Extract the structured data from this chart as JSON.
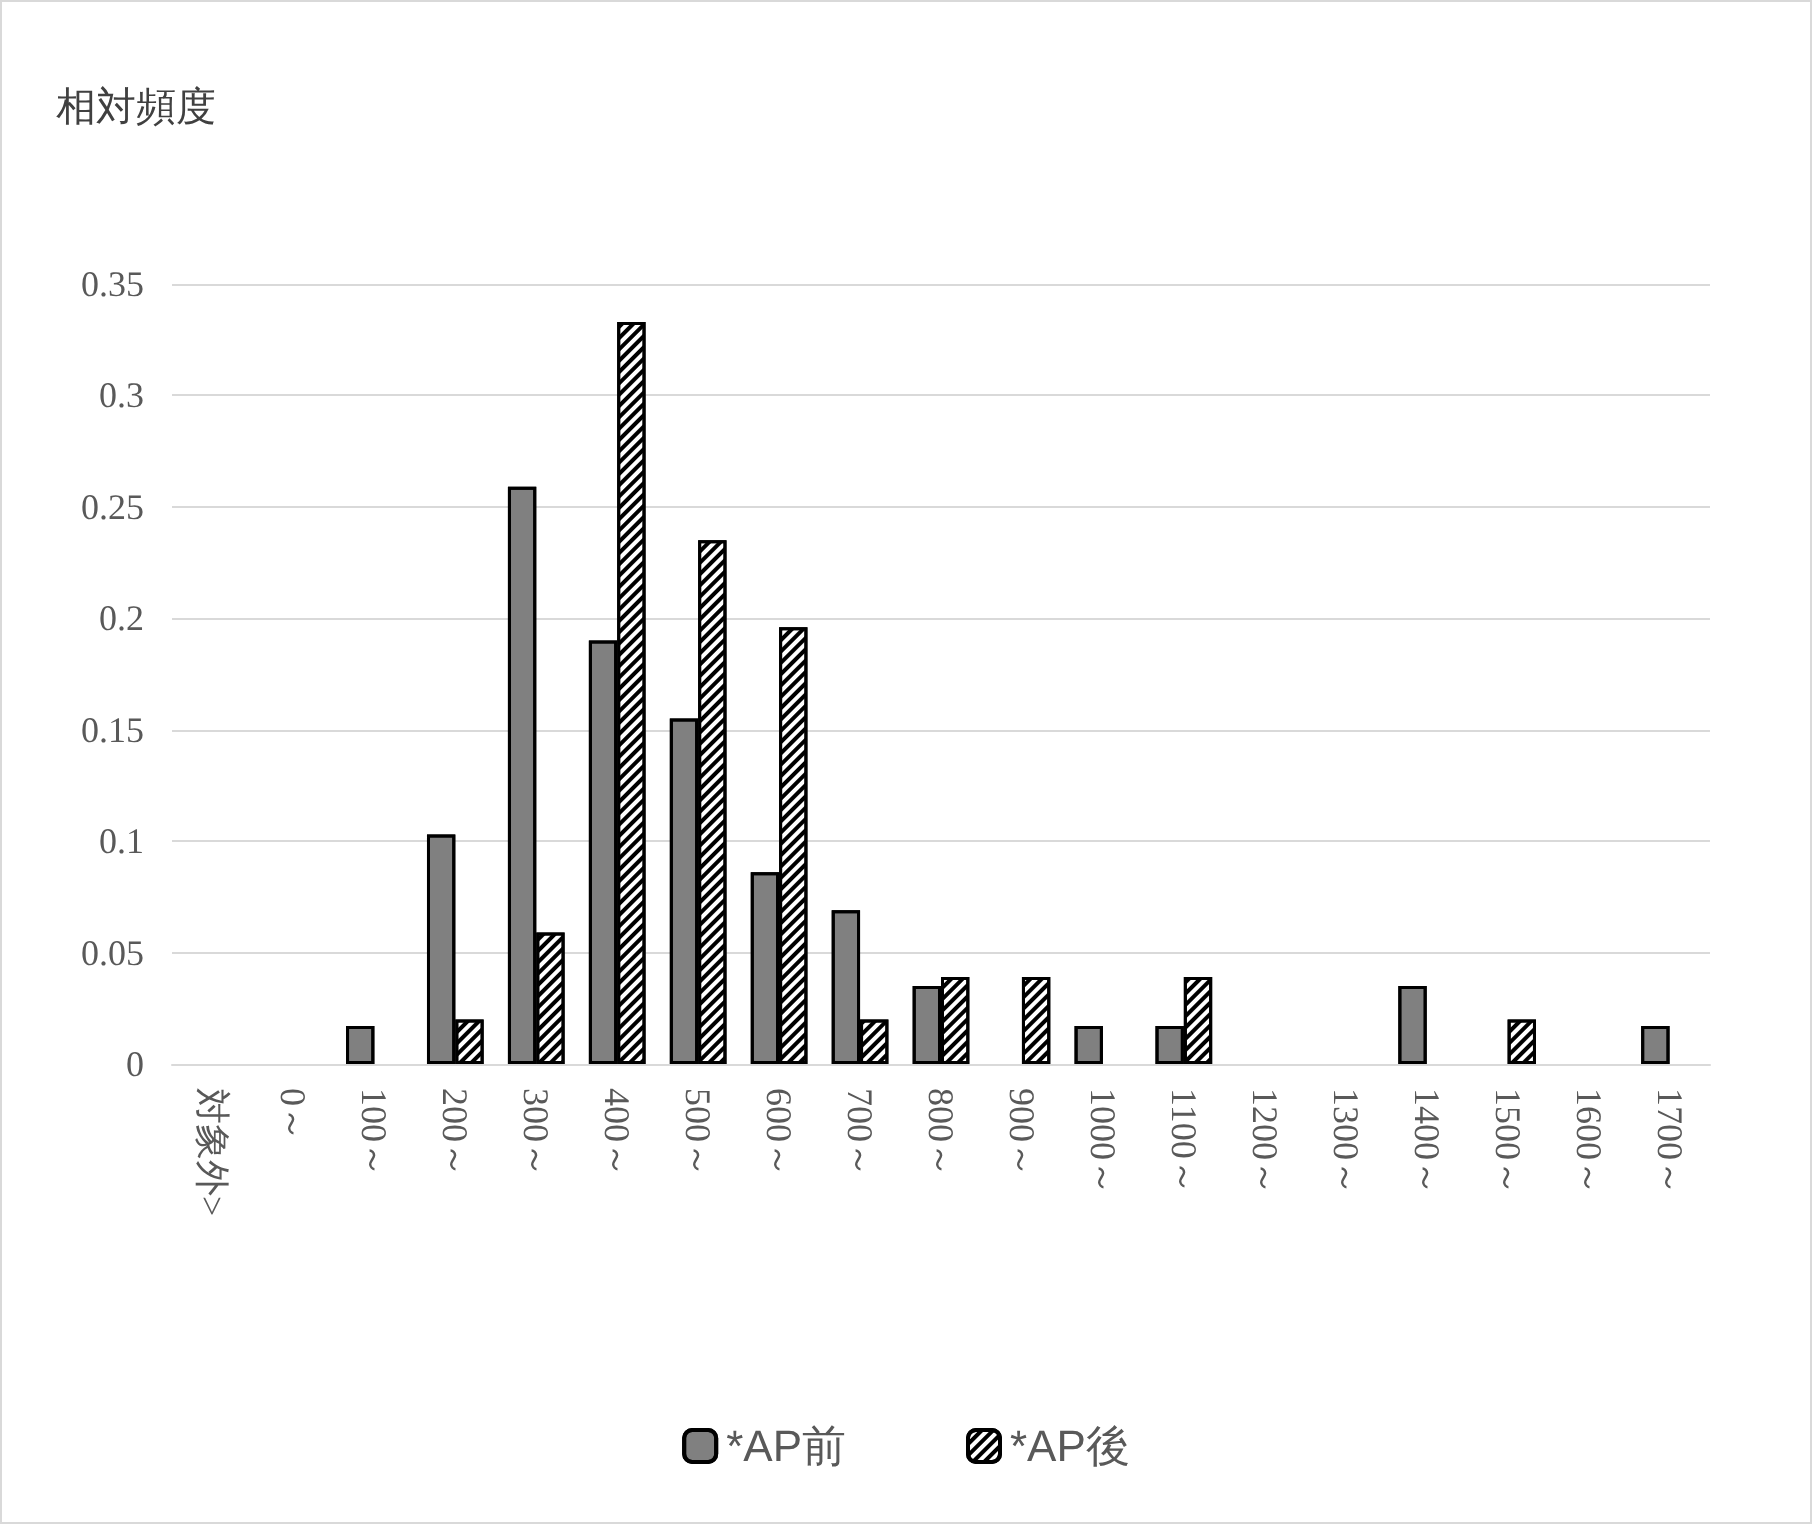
{
  "chart_data": {
    "type": "bar",
    "ylabel": "相対頻度",
    "categories": [
      "対象外>",
      "0～",
      "100～",
      "200～",
      "300～",
      "400～",
      "500～",
      "600～",
      "700～",
      "800～",
      "900～",
      "1000～",
      "1100～",
      "1200～",
      "1300～",
      "1400～",
      "1500～",
      "1600～",
      "1700～"
    ],
    "series": [
      {
        "name": "*AP前",
        "color": "#808080",
        "values": [
          0,
          0,
          0.017,
          0.103,
          0.259,
          0.19,
          0.155,
          0.086,
          0.069,
          0.035,
          0,
          0.017,
          0.017,
          0,
          0,
          0.035,
          0,
          0,
          0.017
        ]
      },
      {
        "name": "*AP後",
        "color": "#ffffff",
        "values": [
          0,
          0,
          0,
          0.02,
          0.059,
          0.333,
          0.235,
          0.196,
          0.02,
          0.039,
          0.039,
          0,
          0.039,
          0,
          0,
          0,
          0.02,
          0,
          0
        ]
      }
    ],
    "ylim": [
      0,
      0.35
    ],
    "yticks": [
      0,
      0.05,
      0.1,
      0.15,
      0.2,
      0.25,
      0.3,
      0.35
    ],
    "grid": "y",
    "legend": "bottom"
  }
}
